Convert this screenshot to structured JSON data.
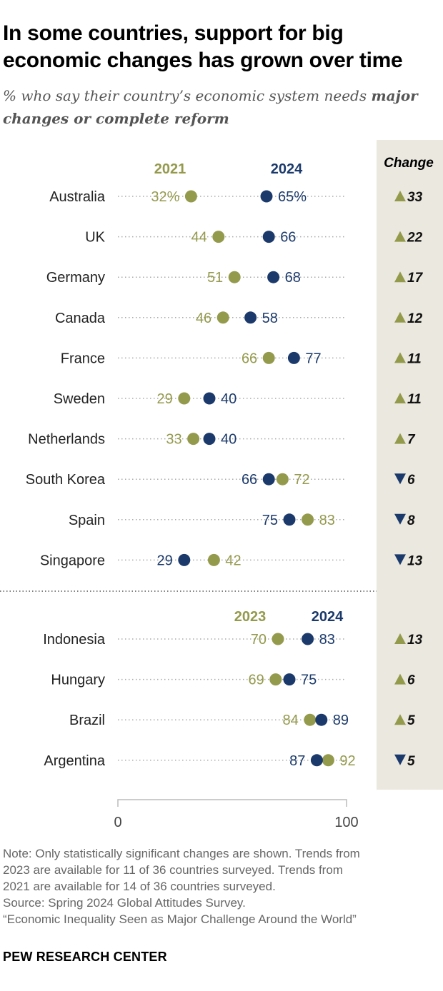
{
  "title": "In some countries, support for big economic changes has grown over time",
  "subtitle_prefix": "% who say their country’s economic system needs ",
  "subtitle_bold": "major changes or complete reform",
  "colors": {
    "olive": "#949a4c",
    "navy": "#1b3a6b",
    "change_bg": "#ebe8df",
    "label": "#222222",
    "dots": "#aaaaaa"
  },
  "chart_data": {
    "type": "dot",
    "change_header": "Change",
    "xlim": [
      0,
      100
    ],
    "x_ticks": [
      "0",
      "100"
    ],
    "groups": [
      {
        "earlier_label": "2021",
        "later_label": "2024",
        "rows": [
          {
            "country": "Australia",
            "earlier": 32,
            "later": 65,
            "earlier_label": "32%",
            "later_label": "65%",
            "change": "33",
            "direction": "up"
          },
          {
            "country": "UK",
            "earlier": 44,
            "later": 66,
            "earlier_label": "44",
            "later_label": "66",
            "change": "22",
            "direction": "up"
          },
          {
            "country": "Germany",
            "earlier": 51,
            "later": 68,
            "earlier_label": "51",
            "later_label": "68",
            "change": "17",
            "direction": "up"
          },
          {
            "country": "Canada",
            "earlier": 46,
            "later": 58,
            "earlier_label": "46",
            "later_label": "58",
            "change": "12",
            "direction": "up"
          },
          {
            "country": "France",
            "earlier": 66,
            "later": 77,
            "earlier_label": "66",
            "later_label": "77",
            "change": "11",
            "direction": "up"
          },
          {
            "country": "Sweden",
            "earlier": 29,
            "later": 40,
            "earlier_label": "29",
            "later_label": "40",
            "change": "11",
            "direction": "up"
          },
          {
            "country": "Netherlands",
            "earlier": 33,
            "later": 40,
            "earlier_label": "33",
            "later_label": "40",
            "change": "7",
            "direction": "up"
          },
          {
            "country": "South Korea",
            "earlier": 72,
            "later": 66,
            "earlier_label": "72",
            "later_label": "66",
            "change": "6",
            "direction": "down"
          },
          {
            "country": "Spain",
            "earlier": 83,
            "later": 75,
            "earlier_label": "83",
            "later_label": "75",
            "change": "8",
            "direction": "down"
          },
          {
            "country": "Singapore",
            "earlier": 42,
            "later": 29,
            "earlier_label": "42",
            "later_label": "29",
            "change": "13",
            "direction": "down"
          }
        ]
      },
      {
        "earlier_label": "2023",
        "later_label": "2024",
        "rows": [
          {
            "country": "Indonesia",
            "earlier": 70,
            "later": 83,
            "earlier_label": "70",
            "later_label": "83",
            "change": "13",
            "direction": "up"
          },
          {
            "country": "Hungary",
            "earlier": 69,
            "later": 75,
            "earlier_label": "69",
            "later_label": "75",
            "change": "6",
            "direction": "up"
          },
          {
            "country": "Brazil",
            "earlier": 84,
            "later": 89,
            "earlier_label": "84",
            "later_label": "89",
            "change": "5",
            "direction": "up"
          },
          {
            "country": "Argentina",
            "earlier": 92,
            "later": 87,
            "earlier_label": "92",
            "later_label": "87",
            "change": "5",
            "direction": "down"
          }
        ]
      }
    ]
  },
  "notes": [
    "Note: Only statistically significant changes are shown. Trends from",
    "2023 are available for 11 of 36 countries surveyed. Trends from",
    "2021 are available for 14 of 36 countries surveyed.",
    "Source: Spring 2024 Global Attitudes Survey.",
    "“Economic Inequality Seen as Major Challenge Around the World”"
  ],
  "logo": "PEW RESEARCH CENTER"
}
